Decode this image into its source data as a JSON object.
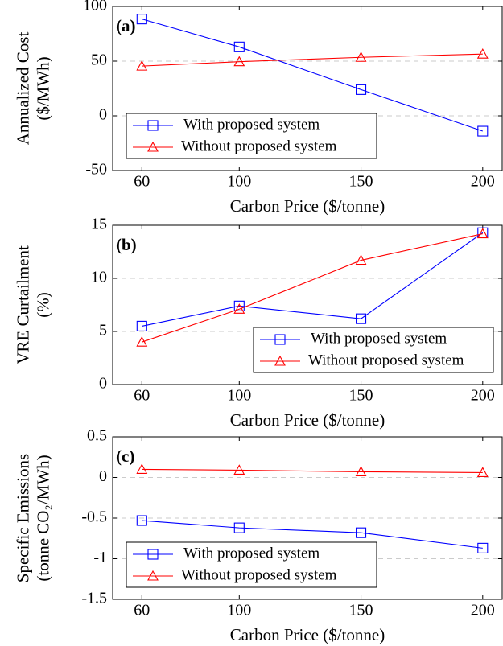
{
  "chart_data": [
    {
      "type": "line",
      "panel_label": "(a)",
      "y_label": [
        "Annualized Cost",
        "($/MWh)"
      ],
      "x_label": "Carbon Price ($/tonne)",
      "x": [
        60,
        100,
        150,
        200
      ],
      "xlim": [
        48,
        208
      ],
      "xticks": [
        60,
        100,
        150,
        200
      ],
      "ylim": [
        -50,
        100
      ],
      "yticks": [
        -50,
        0,
        50,
        100
      ],
      "grid": "y",
      "legend": "lower left",
      "series": [
        {
          "name": "With proposed system",
          "color": "#0000ff",
          "marker": "square",
          "values": [
            88.5,
            63,
            24,
            -14
          ]
        },
        {
          "name": "Without proposed system",
          "color": "#ff0000",
          "marker": "triangle",
          "values": [
            45.5,
            49.5,
            53.5,
            56.5
          ]
        }
      ]
    },
    {
      "type": "line",
      "panel_label": "(b)",
      "y_label": [
        "VRE Curtailment",
        "(%)"
      ],
      "x_label": "Carbon Price ($/tonne)",
      "x": [
        60,
        100,
        150,
        200
      ],
      "xlim": [
        48,
        208
      ],
      "xticks": [
        60,
        100,
        150,
        200
      ],
      "ylim": [
        0,
        15
      ],
      "yticks": [
        0,
        5,
        10,
        15
      ],
      "grid": "y",
      "legend": "lower right",
      "series": [
        {
          "name": "With proposed system",
          "color": "#0000ff",
          "marker": "square",
          "values": [
            5.5,
            7.4,
            6.2,
            14.3
          ]
        },
        {
          "name": "Without proposed system",
          "color": "#ff0000",
          "marker": "triangle",
          "values": [
            4.0,
            7.1,
            11.7,
            14.2
          ]
        }
      ]
    },
    {
      "type": "line",
      "panel_label": "(c)",
      "y_label": [
        "Specific Emissions",
        "(tonne CO₂/MWh)"
      ],
      "x_label": "Carbon Price ($/tonne)",
      "x": [
        60,
        100,
        150,
        200
      ],
      "xlim": [
        48,
        208
      ],
      "xticks": [
        60,
        100,
        150,
        200
      ],
      "ylim": [
        -1.5,
        0.5
      ],
      "yticks": [
        -1.5,
        -1,
        -0.5,
        0,
        0.5
      ],
      "grid": "y",
      "legend": "lower left",
      "series": [
        {
          "name": "With proposed system",
          "color": "#0000ff",
          "marker": "square",
          "values": [
            -0.53,
            -0.62,
            -0.68,
            -0.87
          ]
        },
        {
          "name": "Without proposed system",
          "color": "#ff0000",
          "marker": "triangle",
          "values": [
            0.1,
            0.09,
            0.07,
            0.06
          ]
        }
      ]
    }
  ]
}
